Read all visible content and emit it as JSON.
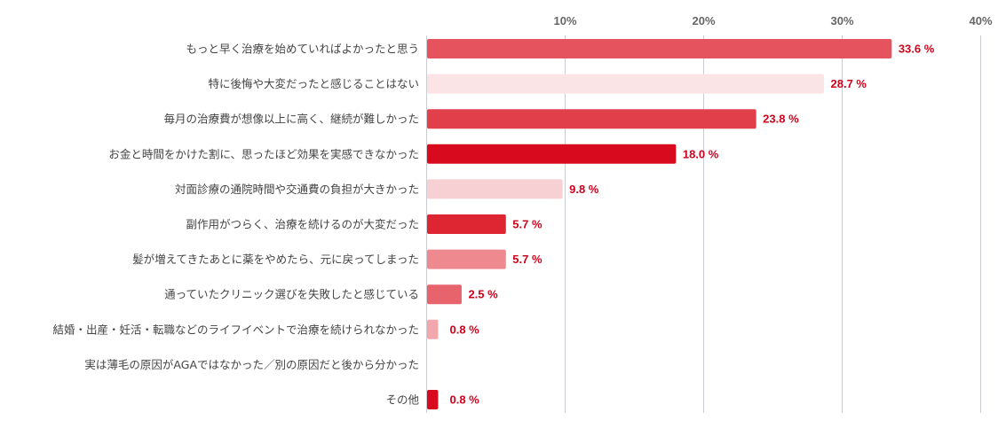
{
  "chart_data": {
    "type": "bar",
    "orientation": "horizontal",
    "title": "",
    "xlabel": "",
    "ylabel": "",
    "xlim": [
      0,
      40
    ],
    "ticks": [
      {
        "value": 10,
        "label": "10%"
      },
      {
        "value": 20,
        "label": "20%"
      },
      {
        "value": 30,
        "label": "30%"
      },
      {
        "value": 40,
        "label": "40%"
      }
    ],
    "grid": true,
    "legend": "none",
    "categories": [
      "もっと早く治療を始めていればよかったと思う",
      "特に後悔や大変だったと感じることはない",
      "毎月の治療費が想像以上に高く、継続が難しかった",
      "お金と時間をかけた割に、思ったほど効果を実感できなかった",
      "対面診療の通院時間や交通費の負担が大きかった",
      "副作用がつらく、治療を続けるのが大変だった",
      "髪が増えてきたあとに薬をやめたら、元に戻ってしまった",
      "通っていたクリニック選びを失敗したと感じている",
      "結婚・出産・妊活・転職などのライフイベントで治療を続けられなかった",
      "実は薄毛の原因がAGAではなかった／別の原因だと後から分かった",
      "その他"
    ],
    "values": [
      33.6,
      28.7,
      23.8,
      18.0,
      9.8,
      5.7,
      5.7,
      2.5,
      0.8,
      0,
      0.8
    ],
    "value_labels": [
      "33.6 %",
      "28.7 %",
      "23.8 %",
      "18.0 %",
      "9.8 %",
      "5.7 %",
      "5.7 %",
      "2.5 %",
      "0.8 %",
      "",
      "0.8 %"
    ],
    "colors": [
      "#e5535f",
      "#fbe4e6",
      "#e1404b",
      "#d80b1e",
      "#f7d0d4",
      "#de2632",
      "#ef8990",
      "#e8646d",
      "#f2a7ac",
      "#ffffff",
      "#d80b1e"
    ],
    "label_color": "#d0021b",
    "grid_color": "#c9cdd3"
  }
}
